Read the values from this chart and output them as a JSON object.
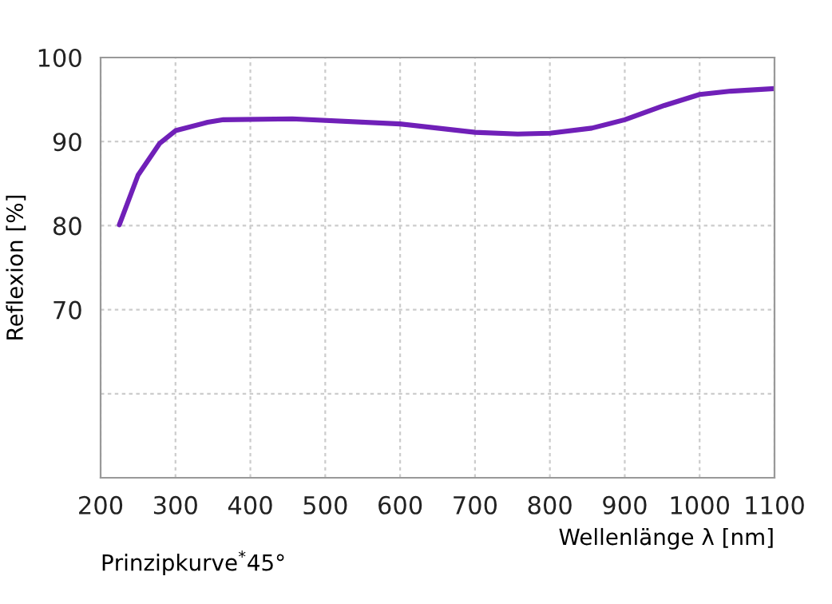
{
  "chart_data": {
    "type": "line",
    "xlabel": "Wellenlänge λ [nm]",
    "ylabel": "Reflexion [%]",
    "annotations": [
      "Prinzipkurve$^{*}$45°"
    ],
    "series": [
      {
        "color": "#7020b8",
        "x": [
          225,
          250,
          279,
          300,
          343,
          364,
          456,
          600,
          700,
          757,
          800,
          856,
          900,
          953,
          1000,
          1042,
          1100
        ],
        "values": [
          80.1,
          86,
          89.8,
          91.3,
          92.3,
          92.6,
          92.7,
          92.1,
          91.1,
          90.9,
          91.0,
          91.6,
          92.6,
          94.3,
          95.6,
          96,
          96.3
        ]
      }
    ],
    "xlim": [
      200,
      1100
    ],
    "ylim": [
      50,
      100
    ],
    "xticks": [
      200,
      300,
      400,
      500,
      600,
      700,
      800,
      900,
      1000,
      1100
    ],
    "yticks": [
      {
        "value": 60,
        "label": null
      },
      70,
      80,
      90,
      100
    ],
    "grid": true,
    "marker": "none",
    "line_style": "solid"
  }
}
